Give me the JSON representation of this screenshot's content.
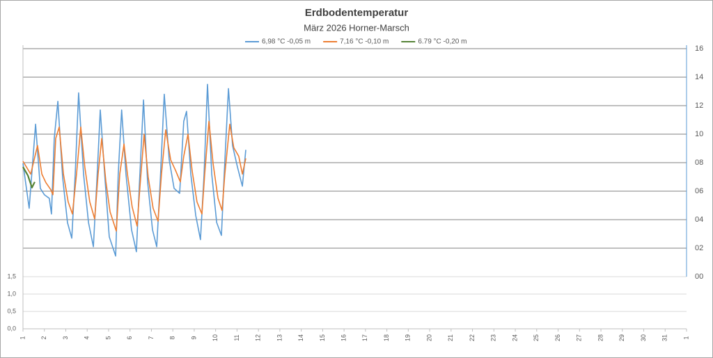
{
  "chart_data": {
    "type": "line",
    "title": "Erdbodentemperatur",
    "subtitle": "März 2026 Horner-Marsch",
    "xlim": [
      1,
      32
    ],
    "xticks": [
      1,
      2,
      3,
      4,
      5,
      6,
      7,
      8,
      9,
      10,
      11,
      12,
      13,
      14,
      15,
      16,
      17,
      18,
      19,
      20,
      21,
      22,
      23,
      24,
      25,
      26,
      27,
      28,
      29,
      30,
      31,
      {
        "value": 32,
        "label": "1"
      }
    ],
    "ylim": [
      0,
      16
    ],
    "yticks": [
      {
        "value": 0,
        "label": "00"
      },
      {
        "value": 2,
        "label": "02"
      },
      {
        "value": 4,
        "label": "04"
      },
      {
        "value": 6,
        "label": "06"
      },
      {
        "value": 8,
        "label": "08"
      },
      {
        "value": 10,
        "label": "10"
      },
      {
        "value": 12,
        "label": "12"
      },
      {
        "value": 14,
        "label": "14"
      },
      {
        "value": 16,
        "label": "16"
      }
    ],
    "lower_panel": {
      "ylim": [
        0,
        1.5
      ],
      "yticks": [
        {
          "value": 0,
          "label": "0,0"
        },
        {
          "value": 0.5,
          "label": "0,5"
        },
        {
          "value": 1,
          "label": "1,0"
        },
        {
          "value": 1.5,
          "label": "1,5"
        }
      ]
    },
    "grid": true,
    "series": [
      {
        "name": "6,98 °C -0,05 m",
        "color": "#5b9bd5",
        "x": [
          1.0,
          1.29,
          1.59,
          1.81,
          2.0,
          2.23,
          2.33,
          2.46,
          2.63,
          2.85,
          3.08,
          3.28,
          3.44,
          3.6,
          3.83,
          4.06,
          4.29,
          4.45,
          4.61,
          4.84,
          5.03,
          5.33,
          5.45,
          5.61,
          5.81,
          6.07,
          6.3,
          6.43,
          6.63,
          6.82,
          7.05,
          7.25,
          7.41,
          7.6,
          7.83,
          8.06,
          8.32,
          8.51,
          8.64,
          8.84,
          9.07,
          9.29,
          9.46,
          9.62,
          9.82,
          10.05,
          10.27,
          10.4,
          10.6,
          10.79,
          11.02,
          11.25,
          11.41
        ],
        "values": [
          7.95,
          4.8,
          10.7,
          6.2,
          5.75,
          5.5,
          4.4,
          9.7,
          12.3,
          7.0,
          3.8,
          2.7,
          7.2,
          12.9,
          7.2,
          3.8,
          2.1,
          6.7,
          11.7,
          6.7,
          2.8,
          1.45,
          7.2,
          11.7,
          7.2,
          3.3,
          1.75,
          6.2,
          12.4,
          6.7,
          3.3,
          2.1,
          6.7,
          12.8,
          8.2,
          6.2,
          5.85,
          10.9,
          11.6,
          7.2,
          4.3,
          2.6,
          7.2,
          13.5,
          7.2,
          3.8,
          2.9,
          7.2,
          13.2,
          9.2,
          7.7,
          6.35,
          8.9
        ]
      },
      {
        "name": "7,16 °C -0,10 m",
        "color": "#ed7d31",
        "x": [
          1.0,
          1.36,
          1.52,
          1.68,
          1.88,
          2.07,
          2.3,
          2.4,
          2.53,
          2.69,
          2.89,
          3.11,
          3.31,
          3.5,
          3.7,
          3.89,
          4.12,
          4.35,
          4.51,
          4.68,
          4.87,
          5.07,
          5.36,
          5.52,
          5.72,
          5.88,
          6.1,
          6.33,
          6.46,
          6.66,
          6.85,
          7.08,
          7.31,
          7.47,
          7.67,
          7.9,
          8.13,
          8.35,
          8.51,
          8.71,
          8.9,
          9.13,
          9.36,
          9.49,
          9.69,
          9.88,
          10.11,
          10.3,
          10.43,
          10.66,
          10.85,
          11.08,
          11.25,
          11.41
        ],
        "values": [
          8.1,
          7.2,
          8.2,
          9.2,
          7.2,
          6.6,
          6.1,
          5.75,
          9.7,
          10.5,
          7.2,
          5.25,
          4.4,
          7.2,
          10.5,
          7.7,
          5.25,
          4.05,
          7.2,
          9.7,
          6.7,
          4.55,
          3.2,
          7.2,
          9.3,
          7.2,
          4.9,
          3.55,
          6.25,
          10.0,
          7.0,
          4.8,
          3.9,
          7.2,
          10.3,
          8.2,
          7.45,
          6.65,
          8.45,
          10.0,
          7.45,
          5.25,
          4.4,
          7.2,
          10.9,
          7.95,
          5.5,
          4.65,
          7.2,
          10.7,
          9.05,
          8.45,
          7.2,
          8.3
        ]
      },
      {
        "name": "6.79 °C -0,20 m",
        "color": "#548235",
        "x": [
          1.0,
          1.23,
          1.42,
          1.55
        ],
        "values": [
          7.7,
          7.1,
          6.25,
          6.65
        ]
      }
    ]
  }
}
